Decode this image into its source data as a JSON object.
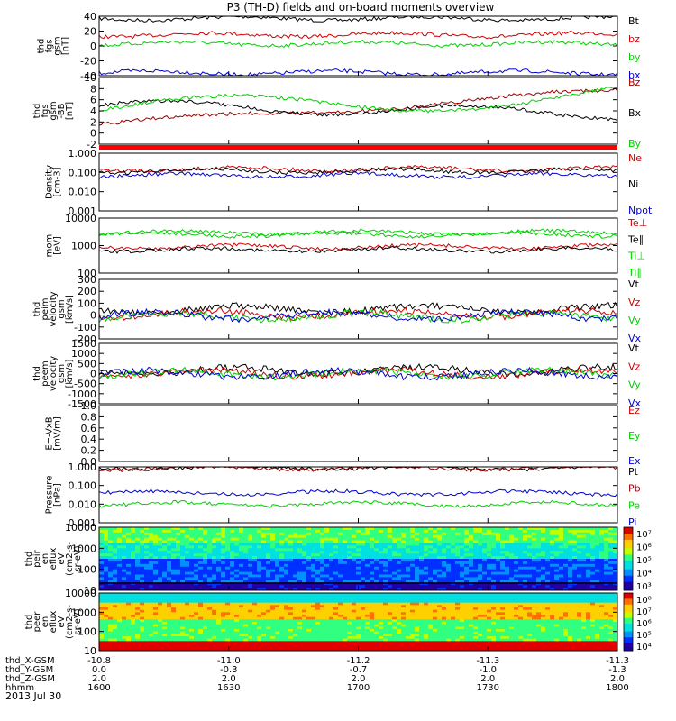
{
  "title": "P3 (TH-D) fields and on-board moments overview",
  "date": "2013 Jul 30",
  "xaxis": {
    "rows": [
      {
        "label": "thd_X-GSM",
        "values": [
          "-10.8",
          "-11.0",
          "-11.2",
          "-11.3",
          "-11.3"
        ]
      },
      {
        "label": "thd_Y-GSM",
        "values": [
          "0.0",
          "-0.3",
          "-0.7",
          "-1.0",
          "-1.3"
        ]
      },
      {
        "label": "thd_Z-GSM",
        "values": [
          "2.0",
          "2.0",
          "2.0",
          "2.0",
          "2.0"
        ]
      },
      {
        "label": "hhmm",
        "values": [
          "1600",
          "1630",
          "1700",
          "1730",
          "1800"
        ]
      }
    ]
  },
  "colors": {
    "black": "#000000",
    "red": "#d00000",
    "green": "#00d000",
    "blue": "#0000d0",
    "darkred": "#a00000"
  },
  "chart_data": [
    {
      "type": "line",
      "ylabel": [
        "thd",
        "fgs",
        "gsm",
        "[nT]"
      ],
      "ylim": [
        -40,
        40
      ],
      "yscale": "linear",
      "ticks": [
        "40",
        "20",
        "0",
        "-20",
        "-40"
      ],
      "series": [
        {
          "name": "Bt",
          "color": "#000000",
          "level": 37
        },
        {
          "name": "bz",
          "color": "#d00000",
          "level": 15
        },
        {
          "name": "by",
          "color": "#00d000",
          "level": 3
        },
        {
          "name": "bx",
          "color": "#0000d0",
          "level": -36
        }
      ]
    },
    {
      "type": "line",
      "ylabel": [
        "thd",
        "fgs",
        "gsm",
        "-BB",
        "[nT]"
      ],
      "ylim": [
        -2,
        10
      ],
      "yscale": "linear",
      "ticks": [
        "10",
        "8",
        "6",
        "4",
        "2",
        "0",
        "-2"
      ],
      "series": [
        {
          "name": "Bz",
          "color": "#a00000",
          "level": 3
        },
        {
          "name": "Bx",
          "color": "#000000",
          "level": 5
        },
        {
          "name": "By",
          "color": "#00d000",
          "level": 5
        }
      ]
    },
    {
      "type": "line",
      "ylabel": [
        "Density",
        "[cm-3]"
      ],
      "ylim": [
        0.001,
        1
      ],
      "yscale": "log",
      "ticks": [
        "1.000",
        "0.100",
        "0.010",
        "0.001"
      ],
      "series": [
        {
          "name": "Ne",
          "color": "#d00000",
          "level": 0.15
        },
        {
          "name": "Ni",
          "color": "#000000",
          "level": 0.12
        },
        {
          "name": "Npot",
          "color": "#0000d0",
          "level": 0.07
        }
      ]
    },
    {
      "type": "line",
      "ylabel": [
        "mom",
        "[eV]"
      ],
      "ylim": [
        100,
        10000
      ],
      "yscale": "log",
      "ticks": [
        "10000",
        "1000",
        "100"
      ],
      "series": [
        {
          "name": "Te⊥",
          "color": "#d00000",
          "level": 900
        },
        {
          "name": "Te∥",
          "color": "#000000",
          "level": 700
        },
        {
          "name": "Ti⊥",
          "color": "#00d000",
          "level": 3000
        },
        {
          "name": "Ti∥",
          "color": "#00d000",
          "level": 2500
        }
      ]
    },
    {
      "type": "line",
      "ylabel": [
        "thd",
        "peim",
        "velocity",
        "gsm",
        "[km/s]"
      ],
      "ylim": [
        -200,
        300
      ],
      "yscale": "linear",
      "ticks": [
        "300",
        "200",
        "100",
        "0",
        "-100",
        "-200"
      ],
      "series": [
        {
          "name": "Vt",
          "color": "#000000",
          "level": 50
        },
        {
          "name": "Vz",
          "color": "#d00000",
          "level": 10
        },
        {
          "name": "Vy",
          "color": "#00d000",
          "level": -10
        },
        {
          "name": "Vx",
          "color": "#0000d0",
          "level": -5
        }
      ]
    },
    {
      "type": "line",
      "ylabel": [
        "thd",
        "peem",
        "velocity",
        "gsm",
        "[km/s]"
      ],
      "ylim": [
        -1500,
        1500
      ],
      "yscale": "linear",
      "ticks": [
        "1500",
        "1000",
        "500",
        "0",
        "-500",
        "-1000",
        "-1500"
      ],
      "series": [
        {
          "name": "Vt",
          "color": "#000000",
          "level": 150
        },
        {
          "name": "Vz",
          "color": "#d00000",
          "level": 20
        },
        {
          "name": "Vy",
          "color": "#00d000",
          "level": 0
        },
        {
          "name": "Vx",
          "color": "#0000d0",
          "level": -20
        }
      ]
    },
    {
      "type": "line",
      "ylabel": [
        "E=-VxB",
        "[mV/m]"
      ],
      "ylim": [
        0,
        1
      ],
      "yscale": "linear",
      "ticks": [
        "1.0",
        "0.8",
        "0.6",
        "0.4",
        "0.2",
        "0.0"
      ],
      "series": [
        {
          "name": "Ez",
          "color": "#d00000"
        },
        {
          "name": "Ey",
          "color": "#00d000"
        },
        {
          "name": "Ex",
          "color": "#0000d0"
        }
      ]
    },
    {
      "type": "line",
      "ylabel": [
        "Pressure",
        "[nPa]"
      ],
      "ylim": [
        0.001,
        1
      ],
      "yscale": "log",
      "ticks": [
        "1.000",
        "0.100",
        "0.010",
        "0.001"
      ],
      "series": [
        {
          "name": "Pt",
          "color": "#000000",
          "level": 0.9
        },
        {
          "name": "Pb",
          "color": "#a00000",
          "level": 0.85
        },
        {
          "name": "Pe",
          "color": "#00d000",
          "level": 0.01
        },
        {
          "name": "Pi",
          "color": "#0000d0",
          "level": 0.04
        }
      ]
    },
    {
      "type": "heatmap",
      "ylabel": [
        "thd",
        "peir",
        "en",
        "eflux",
        "eV",
        "(cm2-s-",
        "sr-eV)"
      ],
      "ylim": [
        5,
        20000
      ],
      "yscale": "log",
      "ticks": [
        "10000",
        "1000",
        "100",
        "10"
      ],
      "colorbar": {
        "min_exp": 3,
        "max_exp": 7,
        "ticks": [
          "10⁷",
          "10⁶",
          "10⁵",
          "10⁴",
          "10³"
        ]
      }
    },
    {
      "type": "heatmap",
      "ylabel": [
        "thd",
        "peer",
        "en",
        "eflux",
        "eV",
        "(cm2-s-",
        "sr-eV)"
      ],
      "ylim": [
        5,
        15000
      ],
      "yscale": "log",
      "ticks": [
        "10000",
        "1000",
        "100",
        "10"
      ],
      "colorbar": {
        "min_exp": 4,
        "max_exp": 8,
        "ticks": [
          "10⁸",
          "10⁷",
          "10⁶",
          "10⁵",
          "10⁴"
        ]
      }
    }
  ]
}
